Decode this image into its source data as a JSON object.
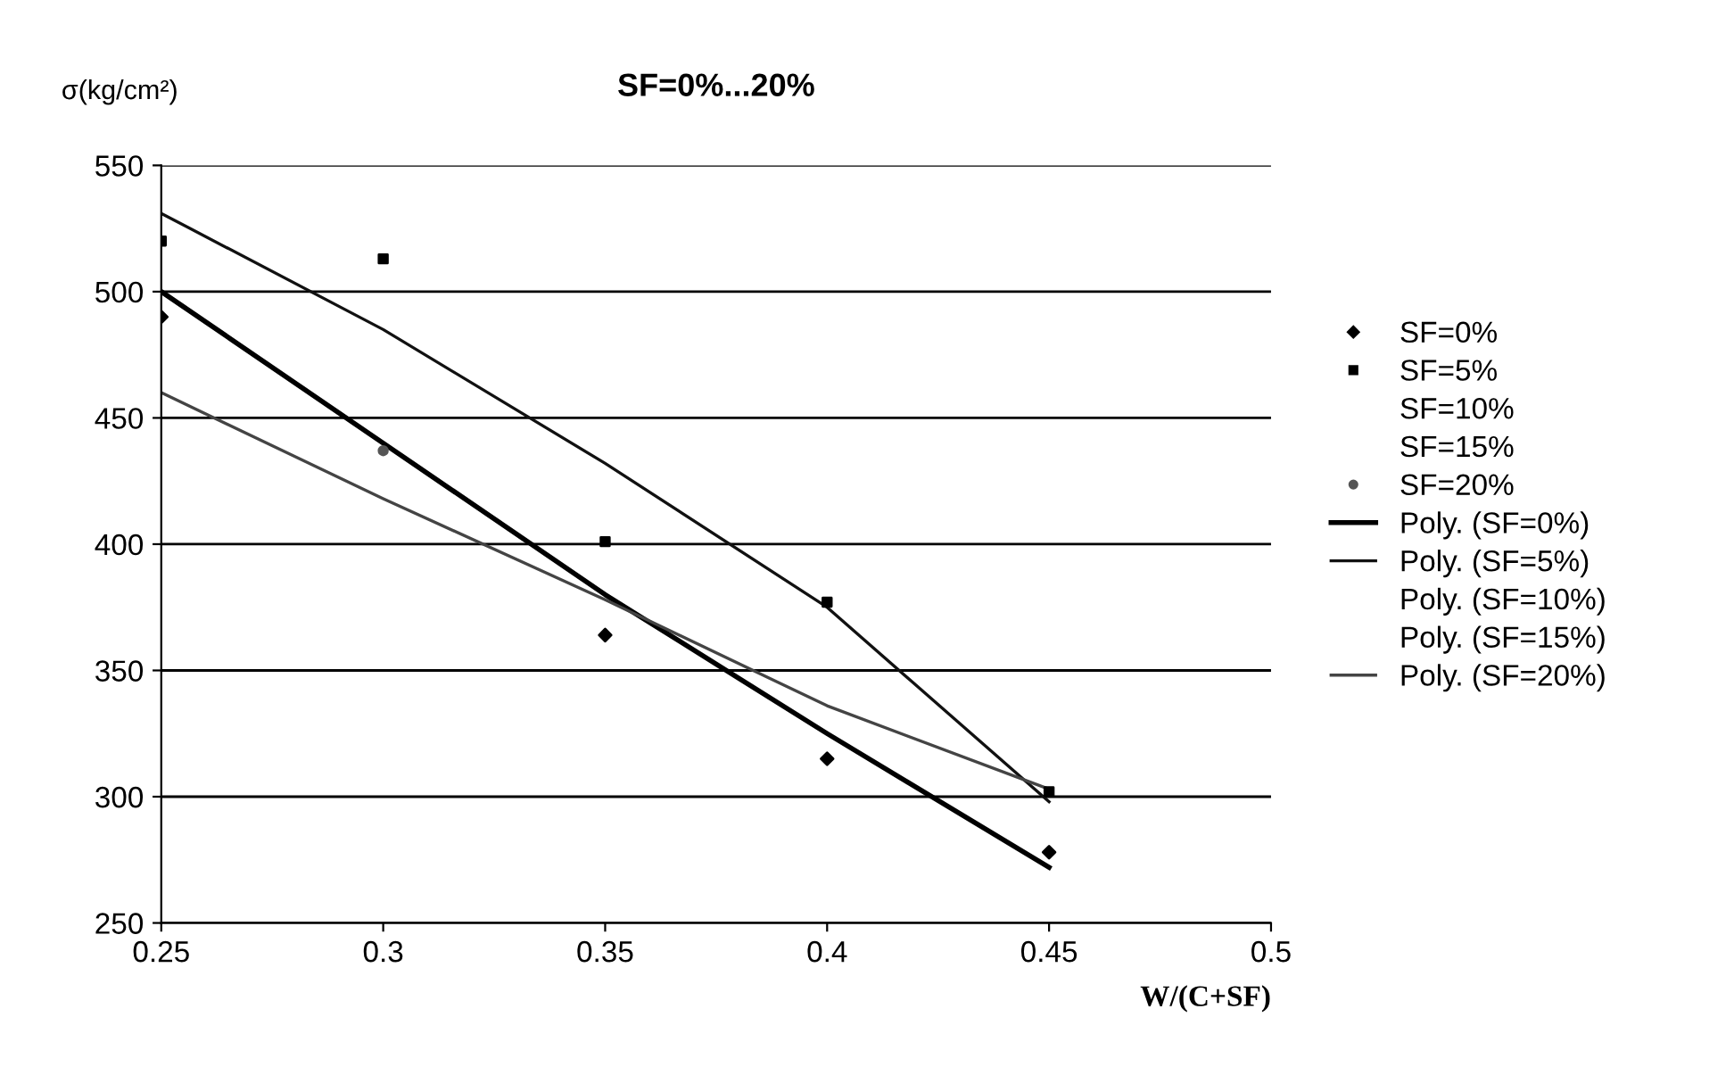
{
  "chart_data": {
    "type": "scatter",
    "title": "SF=0%...20%",
    "xlabel": "W/(C+SF)",
    "ylabel": "σ(kg/cm²)",
    "x": [
      0.25,
      0.3,
      0.35,
      0.4,
      0.45
    ],
    "xlim": [
      0.25,
      0.5
    ],
    "xticks": [
      0.25,
      0.3,
      0.35,
      0.4,
      0.45,
      0.5
    ],
    "ylim": [
      250,
      550
    ],
    "yticks": [
      250,
      300,
      350,
      400,
      450,
      500,
      550
    ],
    "grid": "y",
    "legend": "right",
    "series": [
      {
        "name": "SF=0%",
        "marker": "diamond",
        "color": "#000000",
        "values": [
          490,
          null,
          364,
          315,
          278
        ]
      },
      {
        "name": "SF=5%",
        "marker": "square",
        "color": "#000000",
        "values": [
          520,
          513,
          401,
          377,
          302
        ]
      },
      {
        "name": "SF=10%",
        "marker": "none",
        "values": [
          null,
          null,
          null,
          null,
          null
        ]
      },
      {
        "name": "SF=15%",
        "marker": "none",
        "values": [
          null,
          null,
          null,
          null,
          null
        ]
      },
      {
        "name": "SF=20%",
        "marker": "circle",
        "color": "#555555",
        "values": [
          null,
          437,
          null,
          null,
          null
        ]
      },
      {
        "name": "Poly. (SF=0%)",
        "type": "line",
        "color": "#000000",
        "values": [
          500,
          440,
          380,
          325,
          272
        ]
      },
      {
        "name": "Poly. (SF=5%)",
        "type": "line",
        "color": "#111111",
        "values": [
          531,
          485,
          432,
          375,
          298
        ]
      },
      {
        "name": "Poly. (SF=10%)",
        "type": "line",
        "values": [
          null,
          null,
          null,
          null,
          null
        ]
      },
      {
        "name": "Poly. (SF=15%)",
        "type": "line",
        "values": [
          null,
          null,
          null,
          null,
          null
        ]
      },
      {
        "name": "Poly. (SF=20%)",
        "type": "line",
        "color": "#444444",
        "values": [
          460,
          418,
          378,
          336,
          303
        ]
      }
    ]
  }
}
